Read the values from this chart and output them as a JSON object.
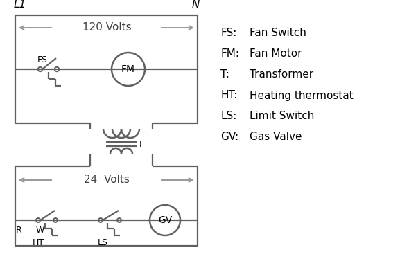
{
  "bg_color": "#ffffff",
  "line_color": "#606060",
  "text_color": "#000000",
  "legend": [
    [
      "FS:",
      "Fan Switch"
    ],
    [
      "FM:",
      "Fan Motor"
    ],
    [
      "T:",
      "Transformer"
    ],
    [
      "HT:",
      "Heating thermostat"
    ],
    [
      "LS:",
      "Limit Switch"
    ],
    [
      "GV:",
      "Gas Valve"
    ]
  ],
  "L1_label": "L1",
  "N_label": "N",
  "volts120_label": "120 Volts",
  "volts24_label": "24  Volts",
  "T_label": "T",
  "R_label": "R",
  "W_label": "W",
  "HT_label": "HT",
  "LS_label": "LS",
  "FS_label": "FS",
  "FM_label": "FM",
  "GV_label": "GV",
  "arrow_color": "#999999"
}
